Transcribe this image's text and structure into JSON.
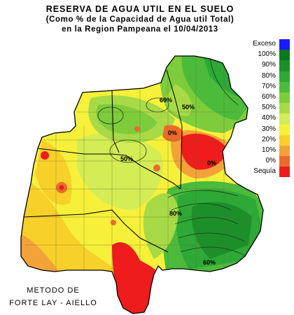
{
  "title": {
    "line1": "RESERVA DE AGUA UTIL EN EL SUELO",
    "line2": "(Como %  de la Capacidad de  Agua util Total)",
    "line3": "en la Region Pampeana el 10/04/2013"
  },
  "legend": [
    {
      "label": "Exceso",
      "color": "#1a1aff"
    },
    {
      "label": "100%",
      "color": "#0b7a1e"
    },
    {
      "label": "90%",
      "color": "#1c8f2a"
    },
    {
      "label": "80%",
      "color": "#2ea836"
    },
    {
      "label": "70%",
      "color": "#4cbb3c"
    },
    {
      "label": "60%",
      "color": "#7dcc3c"
    },
    {
      "label": "50%",
      "color": "#a8da47"
    },
    {
      "label": "40%",
      "color": "#d4ec55"
    },
    {
      "label": "30%",
      "color": "#f6f03a"
    },
    {
      "label": "20%",
      "color": "#f8d02a"
    },
    {
      "label": "10%",
      "color": "#f3a23a"
    },
    {
      "label": "0%",
      "color": "#ee6a2c"
    },
    {
      "label": "Sequía",
      "color": "#ee1c1c"
    }
  ],
  "contour_labels": [
    "60%",
    "50%",
    "50%",
    "0%",
    "0%",
    "80%",
    "60%"
  ],
  "method": {
    "line1": "METODO DE",
    "line2": "FORTE LAY - AIELLO"
  }
}
